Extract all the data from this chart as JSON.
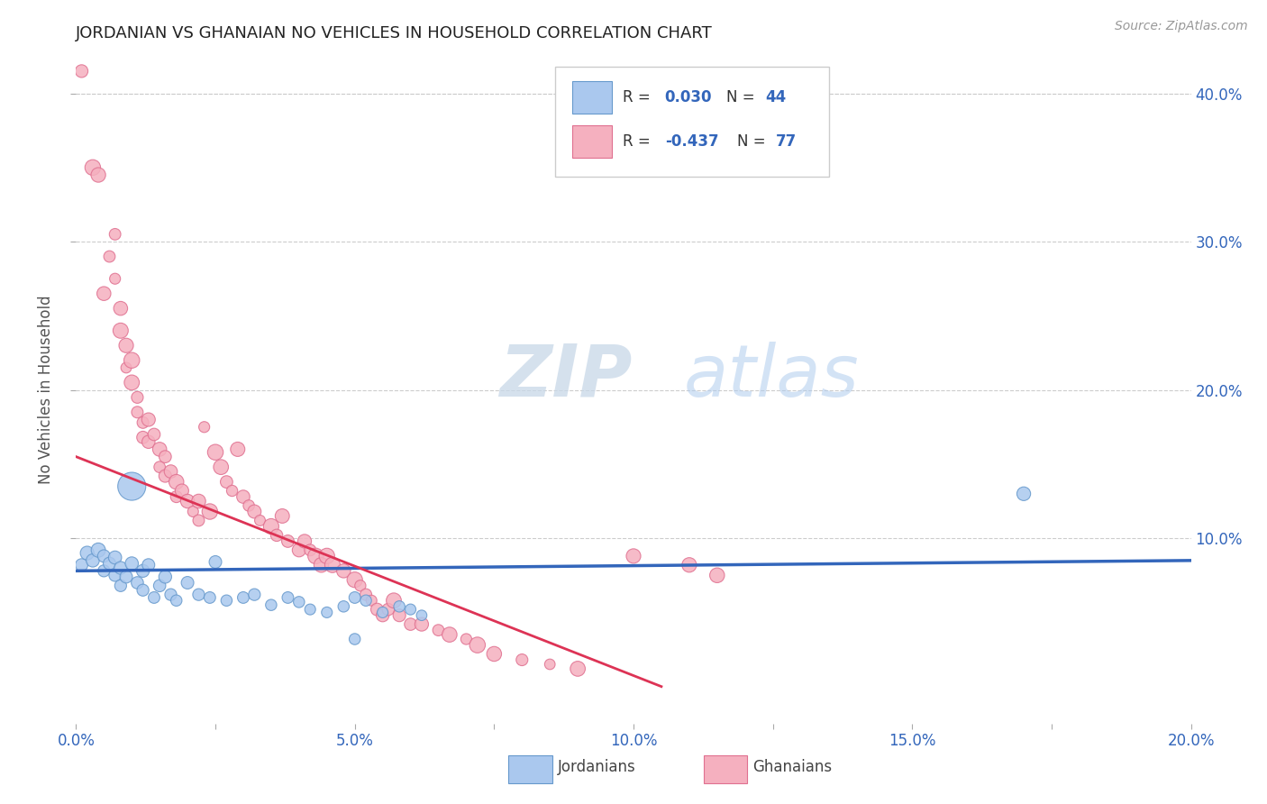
{
  "title": "JORDANIAN VS GHANAIAN NO VEHICLES IN HOUSEHOLD CORRELATION CHART",
  "source": "Source: ZipAtlas.com",
  "ylabel": "No Vehicles in Household",
  "xlim": [
    0.0,
    0.2
  ],
  "ylim": [
    -0.025,
    0.425
  ],
  "xtick_labels": [
    "0.0%",
    "",
    "5.0%",
    "",
    "10.0%",
    "",
    "15.0%",
    "",
    "20.0%"
  ],
  "xtick_vals": [
    0.0,
    0.025,
    0.05,
    0.075,
    0.1,
    0.125,
    0.15,
    0.175,
    0.2
  ],
  "ytick_labels": [
    "10.0%",
    "20.0%",
    "30.0%",
    "40.0%"
  ],
  "ytick_vals": [
    0.1,
    0.2,
    0.3,
    0.4
  ],
  "jordanian_color": "#aac8ee",
  "jordanian_edge": "#6699cc",
  "ghanaian_color": "#f5b0bf",
  "ghanaian_edge": "#e07090",
  "trend_jordan_color": "#3366bb",
  "trend_ghana_color": "#dd3355",
  "legend_jordan_r": "0.030",
  "legend_jordan_n": "44",
  "legend_ghana_r": "-0.437",
  "legend_ghana_n": "77",
  "watermark_zip": "ZIP",
  "watermark_atlas": "atlas",
  "background_color": "#ffffff",
  "jordanian_scatter": [
    [
      0.001,
      0.082
    ],
    [
      0.002,
      0.09
    ],
    [
      0.003,
      0.085
    ],
    [
      0.004,
      0.092
    ],
    [
      0.005,
      0.088
    ],
    [
      0.005,
      0.078
    ],
    [
      0.006,
      0.083
    ],
    [
      0.007,
      0.087
    ],
    [
      0.007,
      0.075
    ],
    [
      0.008,
      0.08
    ],
    [
      0.008,
      0.068
    ],
    [
      0.009,
      0.074
    ],
    [
      0.01,
      0.135
    ],
    [
      0.01,
      0.083
    ],
    [
      0.011,
      0.07
    ],
    [
      0.012,
      0.078
    ],
    [
      0.012,
      0.065
    ],
    [
      0.013,
      0.082
    ],
    [
      0.014,
      0.06
    ],
    [
      0.015,
      0.068
    ],
    [
      0.016,
      0.074
    ],
    [
      0.017,
      0.062
    ],
    [
      0.018,
      0.058
    ],
    [
      0.02,
      0.07
    ],
    [
      0.022,
      0.062
    ],
    [
      0.024,
      0.06
    ],
    [
      0.025,
      0.084
    ],
    [
      0.027,
      0.058
    ],
    [
      0.03,
      0.06
    ],
    [
      0.032,
      0.062
    ],
    [
      0.035,
      0.055
    ],
    [
      0.038,
      0.06
    ],
    [
      0.04,
      0.057
    ],
    [
      0.042,
      0.052
    ],
    [
      0.045,
      0.05
    ],
    [
      0.048,
      0.054
    ],
    [
      0.05,
      0.06
    ],
    [
      0.052,
      0.058
    ],
    [
      0.055,
      0.05
    ],
    [
      0.058,
      0.054
    ],
    [
      0.06,
      0.052
    ],
    [
      0.062,
      0.048
    ],
    [
      0.17,
      0.13
    ],
    [
      0.05,
      0.032
    ]
  ],
  "jordanian_sizes": [
    100,
    120,
    110,
    130,
    100,
    90,
    100,
    110,
    95,
    105,
    90,
    100,
    500,
    110,
    95,
    105,
    90,
    100,
    85,
    95,
    105,
    90,
    80,
    100,
    90,
    85,
    100,
    80,
    85,
    90,
    80,
    85,
    80,
    75,
    75,
    80,
    85,
    80,
    75,
    80,
    75,
    70,
    120,
    80
  ],
  "ghanaian_scatter": [
    [
      0.001,
      0.415
    ],
    [
      0.003,
      0.35
    ],
    [
      0.004,
      0.345
    ],
    [
      0.005,
      0.265
    ],
    [
      0.006,
      0.29
    ],
    [
      0.007,
      0.305
    ],
    [
      0.007,
      0.275
    ],
    [
      0.008,
      0.24
    ],
    [
      0.008,
      0.255
    ],
    [
      0.009,
      0.23
    ],
    [
      0.009,
      0.215
    ],
    [
      0.01,
      0.22
    ],
    [
      0.01,
      0.205
    ],
    [
      0.011,
      0.195
    ],
    [
      0.011,
      0.185
    ],
    [
      0.012,
      0.178
    ],
    [
      0.012,
      0.168
    ],
    [
      0.013,
      0.18
    ],
    [
      0.013,
      0.165
    ],
    [
      0.014,
      0.17
    ],
    [
      0.015,
      0.16
    ],
    [
      0.015,
      0.148
    ],
    [
      0.016,
      0.155
    ],
    [
      0.016,
      0.142
    ],
    [
      0.017,
      0.145
    ],
    [
      0.018,
      0.138
    ],
    [
      0.018,
      0.128
    ],
    [
      0.019,
      0.132
    ],
    [
      0.02,
      0.125
    ],
    [
      0.021,
      0.118
    ],
    [
      0.022,
      0.125
    ],
    [
      0.022,
      0.112
    ],
    [
      0.023,
      0.175
    ],
    [
      0.024,
      0.118
    ],
    [
      0.025,
      0.158
    ],
    [
      0.026,
      0.148
    ],
    [
      0.027,
      0.138
    ],
    [
      0.028,
      0.132
    ],
    [
      0.029,
      0.16
    ],
    [
      0.03,
      0.128
    ],
    [
      0.031,
      0.122
    ],
    [
      0.032,
      0.118
    ],
    [
      0.033,
      0.112
    ],
    [
      0.035,
      0.108
    ],
    [
      0.036,
      0.102
    ],
    [
      0.037,
      0.115
    ],
    [
      0.038,
      0.098
    ],
    [
      0.04,
      0.092
    ],
    [
      0.041,
      0.098
    ],
    [
      0.042,
      0.092
    ],
    [
      0.043,
      0.088
    ],
    [
      0.044,
      0.082
    ],
    [
      0.045,
      0.088
    ],
    [
      0.046,
      0.082
    ],
    [
      0.048,
      0.078
    ],
    [
      0.05,
      0.072
    ],
    [
      0.051,
      0.068
    ],
    [
      0.052,
      0.062
    ],
    [
      0.053,
      0.058
    ],
    [
      0.054,
      0.052
    ],
    [
      0.055,
      0.048
    ],
    [
      0.056,
      0.052
    ],
    [
      0.057,
      0.058
    ],
    [
      0.058,
      0.048
    ],
    [
      0.06,
      0.042
    ],
    [
      0.062,
      0.042
    ],
    [
      0.065,
      0.038
    ],
    [
      0.067,
      0.035
    ],
    [
      0.07,
      0.032
    ],
    [
      0.072,
      0.028
    ],
    [
      0.075,
      0.022
    ],
    [
      0.08,
      0.018
    ],
    [
      0.085,
      0.015
    ],
    [
      0.09,
      0.012
    ],
    [
      0.1,
      0.088
    ],
    [
      0.11,
      0.082
    ],
    [
      0.115,
      0.075
    ]
  ]
}
